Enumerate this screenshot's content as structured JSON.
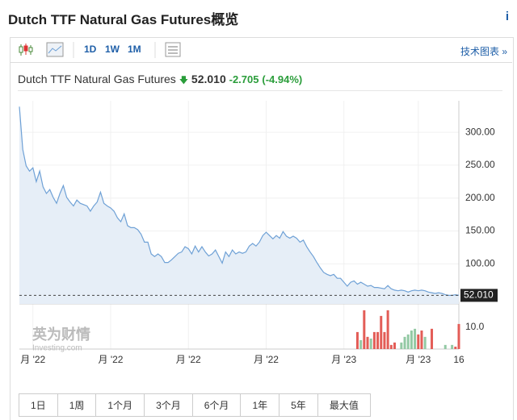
{
  "header": {
    "title": "Dutch TTF Natural Gas Futures概览",
    "info_icon": "i"
  },
  "toolbar": {
    "buttons": [
      "1D",
      "1W",
      "1M"
    ],
    "link": "技术图表 »"
  },
  "quote": {
    "name": "Dutch TTF Natural Gas Futures",
    "price": "52.010",
    "change": "-2.705",
    "change_pct": "(-4.94%)"
  },
  "watermark": {
    "brand": "英为财情",
    "site": "Investing.com"
  },
  "chart_data": {
    "type": "line",
    "color": "#6fa1d6",
    "fill": "#e6eef7",
    "values": [
      339,
      274,
      249,
      241,
      246,
      225,
      241,
      217,
      207,
      213,
      201,
      192,
      207,
      219,
      201,
      194,
      188,
      197,
      192,
      190,
      188,
      180,
      188,
      194,
      209,
      192,
      188,
      185,
      180,
      170,
      164,
      176,
      158,
      155,
      155,
      152,
      145,
      133,
      133,
      115,
      111,
      115,
      111,
      102,
      102,
      106,
      111,
      116,
      118,
      126,
      123,
      115,
      127,
      118,
      126,
      118,
      112,
      115,
      121,
      111,
      101,
      118,
      111,
      121,
      115,
      118,
      116,
      118,
      127,
      131,
      127,
      133,
      143,
      148,
      143,
      138,
      143,
      139,
      149,
      142,
      139,
      142,
      139,
      133,
      136,
      126,
      118,
      111,
      102,
      94,
      87,
      84,
      82,
      84,
      78,
      78,
      72,
      66,
      72,
      74,
      69,
      72,
      69,
      66,
      67,
      64,
      64,
      63,
      62,
      67,
      62,
      60,
      59,
      60,
      59,
      57,
      59,
      60,
      59,
      60,
      59,
      57,
      56,
      55,
      56,
      55,
      53,
      52,
      52,
      53,
      52.01
    ],
    "last_value_label": "52.010",
    "xlim": [
      0,
      130
    ],
    "xticks": [
      {
        "value": 4,
        "label": "月 '22"
      },
      {
        "value": 27,
        "label": "月 '22"
      },
      {
        "value": 50,
        "label": "月 '22"
      },
      {
        "value": 73,
        "label": "月 '22"
      },
      {
        "value": 96,
        "label": "月 '23"
      },
      {
        "value": 118,
        "label": "月 '23"
      },
      {
        "value": 130,
        "label": "16"
      }
    ],
    "ylim": [
      39,
      348
    ],
    "yticks": [
      {
        "value": 100,
        "label": "100.00"
      },
      {
        "value": 150,
        "label": "150.00"
      },
      {
        "value": 200,
        "label": "200.00"
      },
      {
        "value": 250,
        "label": "250.00"
      },
      {
        "value": 300,
        "label": "300.00"
      }
    ],
    "grid": true,
    "volume": {
      "x": [
        100,
        101,
        102,
        103,
        104,
        105,
        106,
        107,
        108,
        109,
        110,
        111,
        113,
        114,
        115,
        116,
        117,
        118,
        119,
        120,
        122,
        126,
        128,
        129,
        130
      ],
      "values": [
        7.8,
        4.1,
        17.8,
        5.6,
        4.8,
        7.8,
        7.8,
        15.2,
        7.8,
        17.8,
        1.9,
        3,
        3,
        5.6,
        6.7,
        8.5,
        9.3,
        6.7,
        8.5,
        5.6,
        9.3,
        1.9,
        1.9,
        1.1,
        11.5
      ],
      "colors": [
        "#e35d57",
        "#93c9a4",
        "#e35d57",
        "#e35d57",
        "#93c9a4",
        "#e35d57",
        "#e35d57",
        "#e35d57",
        "#e35d57",
        "#e35d57",
        "#e35d57",
        "#e35d57",
        "#93c9a4",
        "#93c9a4",
        "#93c9a4",
        "#93c9a4",
        "#93c9a4",
        "#e35d57",
        "#e35d57",
        "#93c9a4",
        "#e35d57",
        "#93c9a4",
        "#93c9a4",
        "#e35d57",
        "#e35d57"
      ],
      "ylim": [
        0,
        19.6
      ],
      "yticks": [
        {
          "value": 10,
          "label": "10.0"
        }
      ]
    }
  },
  "range_buttons": [
    "1日",
    "1周",
    "1个月",
    "3个月",
    "6个月",
    "1年",
    "5年",
    "最大值"
  ]
}
